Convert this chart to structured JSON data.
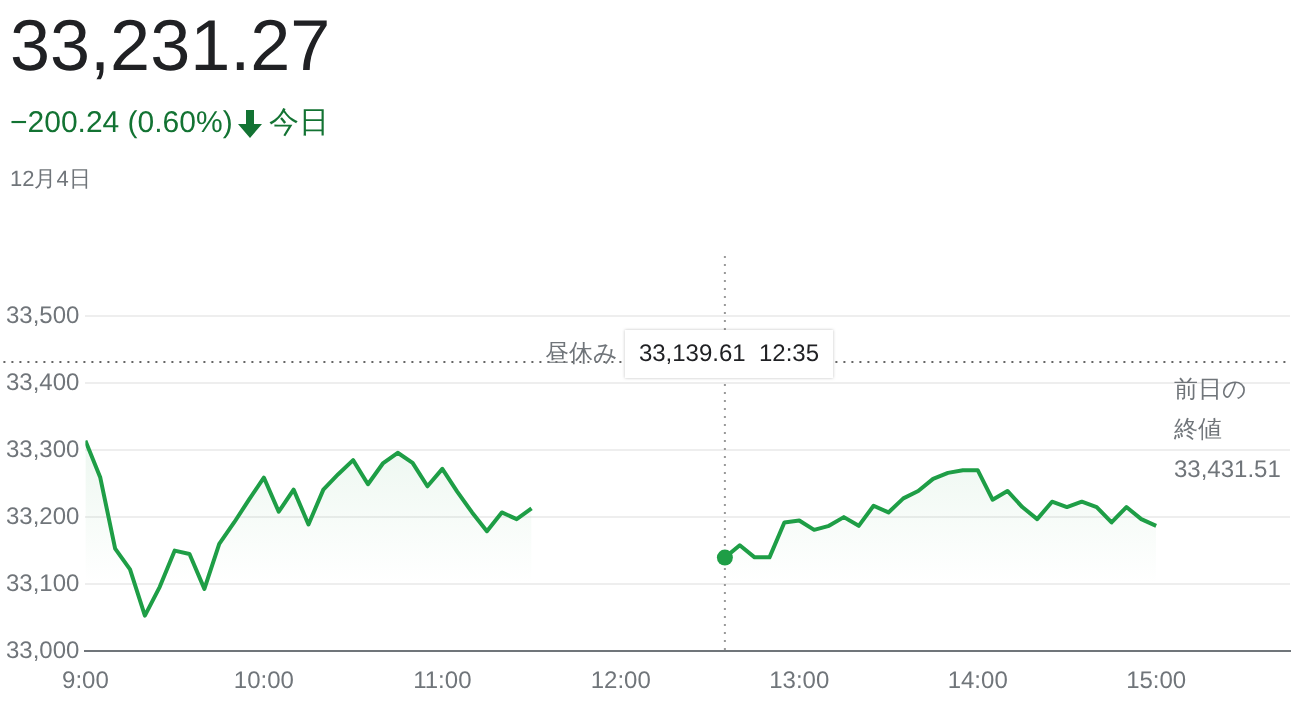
{
  "chart_data": {
    "type": "area",
    "title": "33,231.27",
    "subtitle": "−200.24 (0.60%)",
    "annotations": [
      "今日",
      "12月4日",
      "昼休み",
      "33,139.61  12:35",
      "33,431.51"
    ],
    "series": [
      {
        "color": "#1e9e46",
        "x": [
          9,
          9.083333,
          9.166667,
          9.25,
          9.333333,
          9.416667,
          9.5,
          9.583333,
          9.666667,
          9.75,
          9.833333,
          9.916667,
          10,
          10.083333,
          10.166667,
          10.25,
          10.333333,
          10.416667,
          10.5,
          10.583333,
          10.666667,
          10.75,
          10.833333,
          10.916667,
          11,
          11.083333,
          11.166667,
          11.25,
          11.333333,
          11.416667,
          11.5
        ],
        "values": [
          33314,
          33259,
          33153,
          33122,
          33053,
          33096,
          33150,
          33145,
          33093,
          33160,
          33192,
          33226,
          33259,
          33208,
          33241,
          33189,
          33241,
          33264,
          33285,
          33249,
          33280,
          33296,
          33281,
          33246,
          33272,
          33238,
          33207,
          33179,
          33207,
          33197,
          33213
        ]
      },
      {
        "color": "#1e9e46",
        "x": [
          12.583333,
          12.666667,
          12.75,
          12.833333,
          12.916667,
          13,
          13.083333,
          13.166667,
          13.25,
          13.333333,
          13.416667,
          13.5,
          13.583333,
          13.666667,
          13.75,
          13.833333,
          13.916667,
          14,
          14.083333,
          14.166667,
          14.25,
          14.333333,
          14.416667,
          14.5,
          14.583333,
          14.666667,
          14.75,
          14.833333,
          14.916667,
          15
        ],
        "values": [
          33139.61,
          33158,
          33140,
          33140,
          33192,
          33195,
          33181,
          33187,
          33200,
          33187,
          33217,
          33207,
          33228,
          33239,
          33257,
          33266,
          33270,
          33270,
          33226,
          33239,
          33215,
          33197,
          33223,
          33215,
          33223,
          33215,
          33192,
          33215,
          33197,
          33187
        ]
      }
    ],
    "xlim": [
      9,
      15.75
    ],
    "xticks": [
      {
        "value": 9,
        "label": "9:00"
      },
      {
        "value": 10,
        "label": "10:00"
      },
      {
        "value": 11,
        "label": "11:00"
      },
      {
        "value": 12,
        "label": "12:00"
      },
      {
        "value": 13,
        "label": "13:00"
      },
      {
        "value": 14,
        "label": "14:00"
      },
      {
        "value": 15,
        "label": "15:00"
      }
    ],
    "ylim": [
      33000,
      33500
    ],
    "yticks": [
      {
        "value": 33000,
        "label": "33,000"
      },
      {
        "value": 33100,
        "label": "33,100"
      },
      {
        "value": 33200,
        "label": "33,200"
      },
      {
        "value": 33300,
        "label": "33,300"
      },
      {
        "value": 33400,
        "label": "33,400"
      },
      {
        "value": 33500,
        "label": "33,500"
      }
    ],
    "ref_lines": [
      {
        "axis": "y",
        "value": 33431.51,
        "label": "前日の終値",
        "line_style": "dotted",
        "color": "#666666"
      },
      {
        "axis": "x",
        "value": 12.583333,
        "line_style": "dotted",
        "color": "#999999"
      }
    ],
    "grid": "y",
    "legend": false,
    "marker": "none",
    "line_style": "solid"
  }
}
